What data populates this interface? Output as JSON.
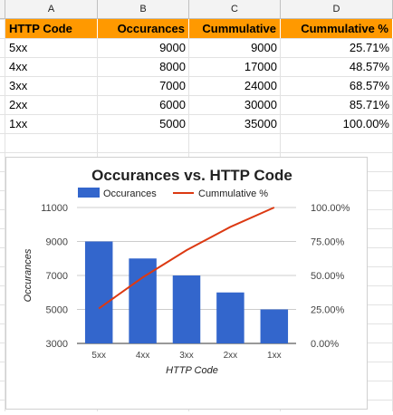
{
  "sheet": {
    "columns": [
      "A",
      "B",
      "C",
      "D"
    ],
    "header": [
      "HTTP Code",
      "Occurances",
      "Cummulative",
      "Cummulative %"
    ],
    "rows": [
      [
        "5xx",
        "9000",
        "9000",
        "25.71%"
      ],
      [
        "4xx",
        "8000",
        "17000",
        "48.57%"
      ],
      [
        "3xx",
        "7000",
        "24000",
        "68.57%"
      ],
      [
        "2xx",
        "6000",
        "30000",
        "85.71%"
      ],
      [
        "1xx",
        "5000",
        "35000",
        "100.00%"
      ]
    ],
    "header_color": "#ff9900"
  },
  "chart_data": {
    "type": "bar",
    "title": "Occurances vs. HTTP Code",
    "xlabel": "HTTP Code",
    "ylabel": "Occurances",
    "categories": [
      "5xx",
      "4xx",
      "3xx",
      "2xx",
      "1xx"
    ],
    "series": [
      {
        "name": "Occurances",
        "type": "bar",
        "axis": "left",
        "color": "#3366cc",
        "values": [
          9000,
          8000,
          7000,
          6000,
          5000
        ]
      },
      {
        "name": "Cummulative %",
        "type": "line",
        "axis": "right",
        "color": "#dc3912",
        "values": [
          25.71,
          48.57,
          68.57,
          85.71,
          100.0
        ]
      }
    ],
    "ylim": [
      3000,
      11000
    ],
    "yticks": [
      "3000",
      "5000",
      "7000",
      "9000",
      "11000"
    ],
    "ylim_right": [
      0,
      100
    ],
    "yticks_right": [
      "0.00%",
      "25.00%",
      "50.00%",
      "75.00%",
      "100.00%"
    ],
    "legend": "top",
    "grid": true
  }
}
